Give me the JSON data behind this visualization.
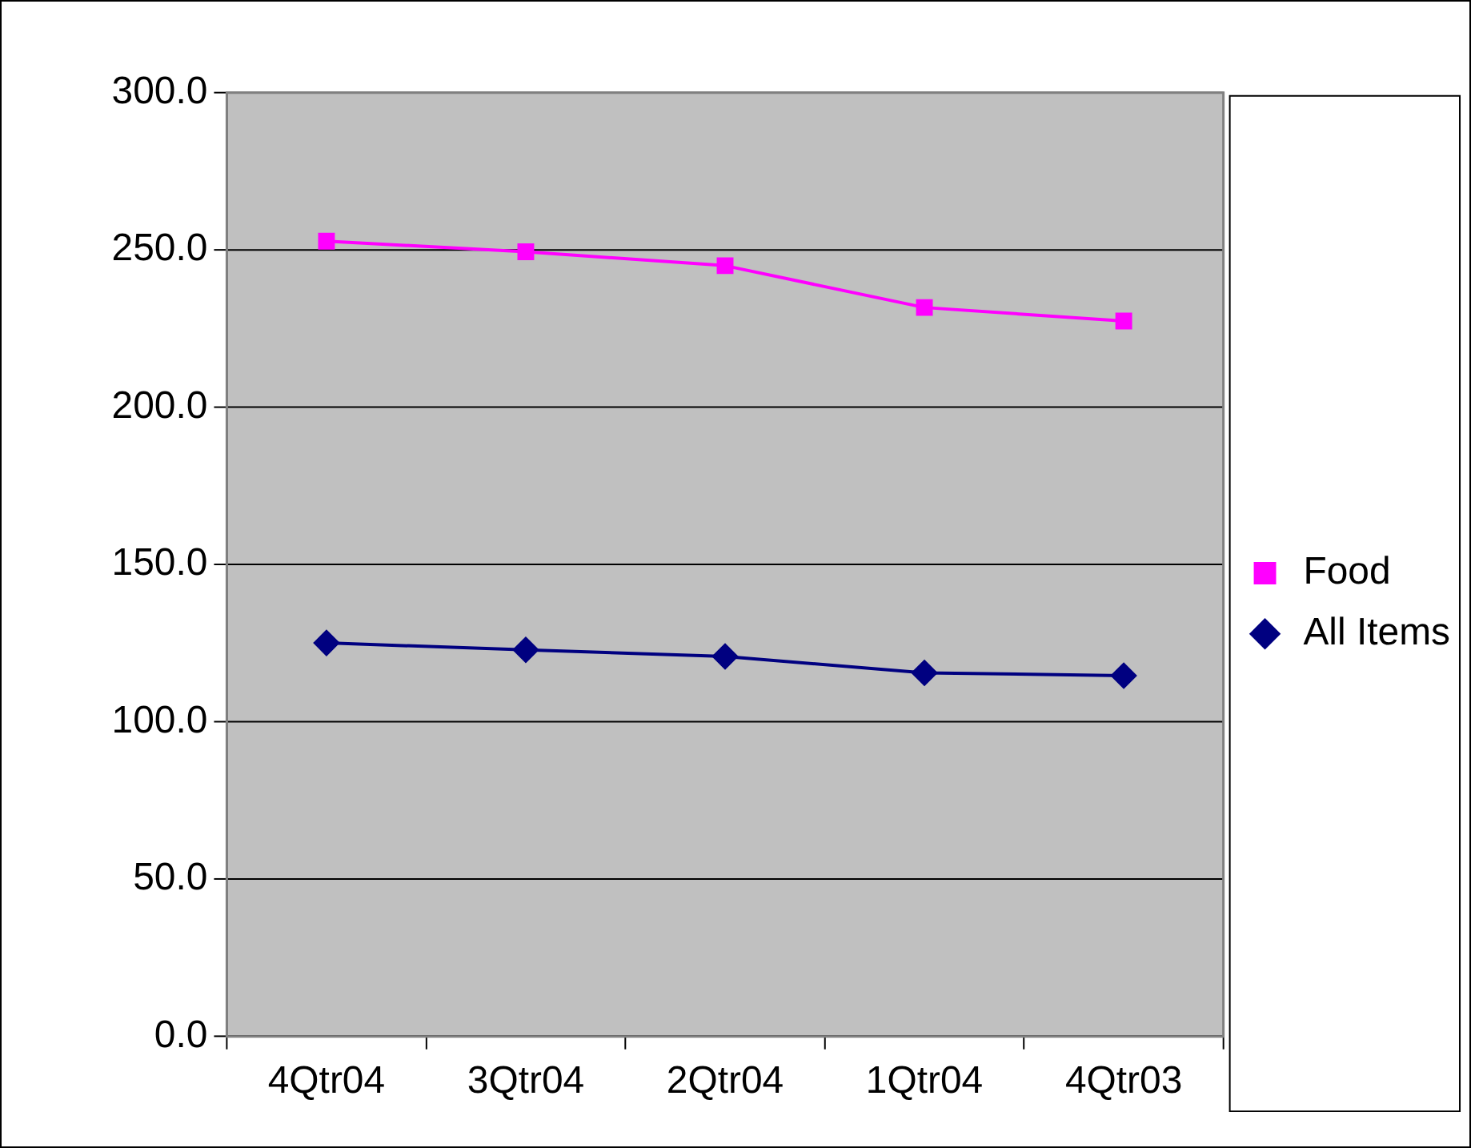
{
  "chart_data": {
    "type": "line",
    "categories": [
      "4Qtr04",
      "3Qtr04",
      "2Qtr04",
      "1Qtr04",
      "4Qtr03"
    ],
    "series": [
      {
        "name": "Food",
        "color": "#ff00ff",
        "marker": "square",
        "values": [
          252.8,
          249.4,
          245.0,
          231.7,
          227.4
        ]
      },
      {
        "name": "All Items",
        "color": "#000080",
        "marker": "diamond",
        "values": [
          125.1,
          122.9,
          120.8,
          115.6,
          114.7
        ]
      }
    ],
    "ylim": [
      0,
      300
    ],
    "yticks": [
      {
        "value": 0,
        "label": "0.0"
      },
      {
        "value": 50,
        "label": "50.0"
      },
      {
        "value": 100,
        "label": "100.0"
      },
      {
        "value": 150,
        "label": "150.0"
      },
      {
        "value": 200,
        "label": "200.0"
      },
      {
        "value": 250,
        "label": "250.0"
      },
      {
        "value": 300,
        "label": "300.0"
      }
    ],
    "grid": "y",
    "legend": "right",
    "line_style": "solid"
  }
}
